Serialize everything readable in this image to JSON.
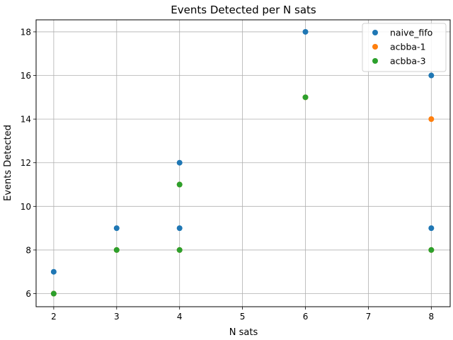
{
  "chart_data": {
    "type": "scatter",
    "title": "Events Detected per N sats",
    "xlabel": "N sats",
    "ylabel": "Events Detected",
    "xlim": [
      1.72,
      8.3
    ],
    "ylim": [
      5.4,
      18.55
    ],
    "xticks": [
      2,
      3,
      4,
      5,
      6,
      7,
      8
    ],
    "yticks": [
      6,
      8,
      10,
      12,
      14,
      16,
      18
    ],
    "grid": true,
    "legend_position": "top-right",
    "series": [
      {
        "name": "naive_fifo",
        "color": "#1f77b4",
        "points": [
          [
            2,
            7
          ],
          [
            3,
            9
          ],
          [
            4,
            12
          ],
          [
            4,
            9
          ],
          [
            6,
            18
          ],
          [
            8,
            16
          ],
          [
            8,
            9
          ]
        ]
      },
      {
        "name": "acbba-1",
        "color": "#ff7f0e",
        "points": [
          [
            2,
            6
          ],
          [
            3,
            8
          ],
          [
            4,
            11
          ],
          [
            4,
            8
          ],
          [
            6,
            15
          ],
          [
            8,
            14
          ],
          [
            8,
            8
          ]
        ]
      },
      {
        "name": "acbba-3",
        "color": "#2ca02c",
        "points": [
          [
            2,
            6
          ],
          [
            3,
            8
          ],
          [
            4,
            11
          ],
          [
            4,
            8
          ],
          [
            6,
            15
          ],
          [
            8,
            8
          ]
        ]
      }
    ]
  }
}
